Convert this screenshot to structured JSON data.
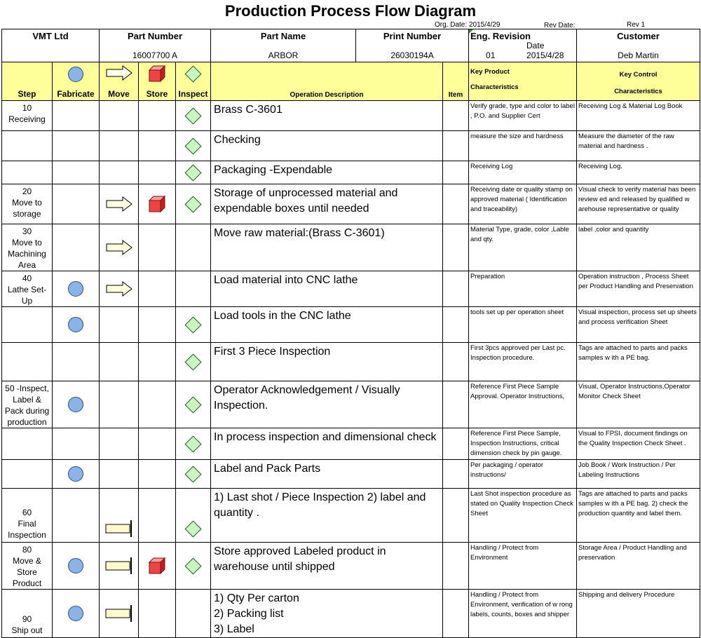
{
  "title": "Production Process Flow Diagram",
  "meta": {
    "org_date_label": "Org. Date:",
    "org_date": "2015/4/29",
    "rev_date_label": "Rev Date:",
    "rev": "Rev 1"
  },
  "header": {
    "company": "VMT Ltd",
    "part_number_label": "Part Number",
    "part_number": "16007700 A",
    "part_name_label": "Part Name",
    "part_name": "ARBOR",
    "print_number_label": "Print Number",
    "print_number": "26030194A",
    "eng_revision_label": "Eng. Revision",
    "eng_revision": "01",
    "date_label": "Date",
    "date": "2015/4/28",
    "customer_label": "Customer",
    "customer": "Deb Martin"
  },
  "columns": {
    "step": "Step",
    "fabricate": "Fabricate",
    "move": "Move",
    "store": "Store",
    "inspect": "Inspect",
    "operation": "Operation Description",
    "item": "Item",
    "key_product_1": "Key Product",
    "key_product_2": "Characteristics",
    "key_control_1": "Key Control",
    "key_control_2": "Characteristics"
  },
  "steps": [
    {
      "step": "10\nReceiving",
      "fab": false,
      "move": "",
      "store": false,
      "inspect": true,
      "op": "Brass C-3601",
      "kp": "Verify grade, type and color to label , P.O. and Supplier Cert",
      "kc": "Receiving Log  & Material Log Book"
    },
    {
      "step": "",
      "fab": false,
      "move": "",
      "store": false,
      "inspect": true,
      "op": "Checking",
      "kp": "measure the size and hardness",
      "kc": "Measure the diameter of the raw material and hardness ."
    },
    {
      "step": "",
      "fab": false,
      "move": "",
      "store": false,
      "inspect": true,
      "op": "Packaging -Expendable",
      "kp": "Receiving Log",
      "kc": "Receiving Log."
    },
    {
      "step": "20\nMove to\nstorage",
      "fab": false,
      "move": "arrow",
      "store": true,
      "inspect": true,
      "op": "Storage of unprocessed material and expendable boxes until needed",
      "kp": "Receiving date or quality stamp on approved material ( Identification and traceability)",
      "kc": "Visual check to verify material has been review ed and released by qualified w arehouse representative or quality"
    },
    {
      "step": "30\nMove to\nMachining\nArea",
      "fab": false,
      "move": "arrow",
      "store": false,
      "inspect": false,
      "op": "Move raw material:(Brass C-3601)",
      "kp": "Material Type, grade, color ,Lable and qty.",
      "kc": "label ,color and quantity"
    },
    {
      "step": "40\nLathe Set-\nUp",
      "fab": true,
      "move": "arrow",
      "store": false,
      "inspect": false,
      "op": " Load material into CNC lathe",
      "kp": "Preparation",
      "kc": "Operation instruction , Process Sheet per Product Handling and Preservation"
    },
    {
      "step": "",
      "fab": true,
      "move": "",
      "store": false,
      "inspect": true,
      "op": "Load tools in the CNC lathe",
      "kp": "tools set up per operation sheet",
      "kc": "Visual inspection, process set up sheets and process verification Sheet"
    },
    {
      "step": "",
      "fab": false,
      "move": "",
      "store": false,
      "inspect": true,
      "op": "First 3 Piece Inspection",
      "kp": "First 3pcs approved per  Last pc. Inspection procedure.",
      "kc": "Tags are attached to parts and packs samples w ith a PE bag."
    },
    {
      "step": "50 -Inspect,\nLabel &\nPack during\nproduction",
      "fab": true,
      "move": "",
      "store": false,
      "inspect": true,
      "op": "Operator Acknowledgement / Visually Inspection.",
      "kp": "Reference First Piece Sample Approval.  Operator Instructions,",
      "kc": "Visual, Operator Instructions,Operator Monitor Check Sheet"
    },
    {
      "step": "",
      "fab": false,
      "move": "",
      "store": false,
      "inspect": true,
      "op": "In process inspection and dimensional check",
      "kp": "Reference First Piece Sample, Inspection Instructions,  critical dimension check by pin gauge.",
      "kc": "Visual to FPSI, document findings on the Quality Inspection Check Sheet ."
    },
    {
      "step": "",
      "fab": true,
      "move": "",
      "store": false,
      "inspect": true,
      "op": "Label and Pack Parts",
      "kp": "Per packaging / operator instructions/",
      "kc": "Job Book / Work Instruction / Per Labeling Instructions"
    },
    {
      "step": "60\nFinal\nInspection",
      "fab": false,
      "move": "bar",
      "store": false,
      "inspect": true,
      "op": "1) Last shot / Piece Inspection    2) label and quantity .",
      "kp": "Last Shot inspection procedure as stated on Quality Inspection Check Sheet",
      "kc": "Tags are attached to parts and packs samples w ith a PE bag. 2) check the production quantity and label them."
    },
    {
      "step": "80\nMove &\nStore\nProduct",
      "fab": true,
      "move": "bar",
      "store": true,
      "inspect": true,
      "op": "Store approved Labeled product in warehouse until shipped",
      "kp": "Handling  / Protect from Environment",
      "kc": "Storage Area / Product Handling and preservation"
    },
    {
      "step": "90\nShip out",
      "fab": true,
      "move": "bar",
      "store": false,
      "inspect": false,
      "op": "1) Qty Per carton\n2) Packing list\n3) Label",
      "kp": "Handling  / Protect from Environment, verification of w rong labels, counts, boxes and shipper",
      "kc": "Shipping and delivery Procedure"
    }
  ]
}
